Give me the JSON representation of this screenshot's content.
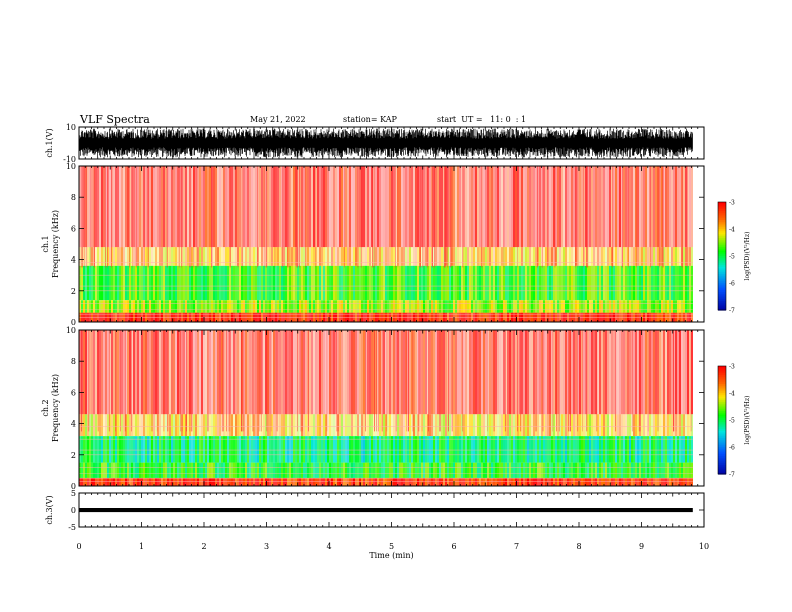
{
  "header": {
    "title": "VLF Spectra",
    "date": "May 21, 2022",
    "station": "station= KAP",
    "start": "start  UT =   11: 0  : 1"
  },
  "chart_data": [
    {
      "type": "line",
      "name": "ch1-waveform",
      "ylabel": "ch.1(V)",
      "ylim": [
        -10,
        10
      ],
      "yticks": [
        "10",
        "-10"
      ],
      "xlim": [
        0,
        10
      ],
      "data_extent_min": 9.82,
      "description_values": {
        "amplitude_min": -9,
        "amplitude_max": 9
      }
    },
    {
      "type": "heatmap",
      "name": "ch1-spectrogram",
      "ylabel": "ch.1\nFrequency (kHz)",
      "ylim": [
        0,
        10
      ],
      "yticks": [
        "0",
        "2",
        "4",
        "6",
        "8",
        "10"
      ],
      "xlim": [
        0,
        10
      ],
      "data_extent_min": 9.82,
      "colorbar": {
        "label": "log(PSD)(V²/Hz)",
        "range": [
          -7,
          -3
        ],
        "ticks": [
          "-3",
          "-4",
          "-5",
          "-6",
          "-7"
        ]
      },
      "bands": [
        {
          "from_khz": 0,
          "to_khz": 0.6,
          "level": -3.2
        },
        {
          "from_khz": 0.6,
          "to_khz": 1.4,
          "level": -4.4
        },
        {
          "from_khz": 1.4,
          "to_khz": 3.6,
          "level": -4.7
        },
        {
          "from_khz": 3.6,
          "to_khz": 4.8,
          "level": -3.9
        },
        {
          "from_khz": 4.8,
          "to_khz": 10,
          "level": -3.1
        }
      ]
    },
    {
      "type": "heatmap",
      "name": "ch2-spectrogram",
      "ylabel": "ch.2\nFrequency (kHz)",
      "ylim": [
        0,
        10
      ],
      "yticks": [
        "0",
        "2",
        "4",
        "6",
        "8",
        "10"
      ],
      "xlim": [
        0,
        10
      ],
      "data_extent_min": 9.82,
      "colorbar": {
        "label": "log(PSD)(V²/Hz)",
        "range": [
          -7,
          -3
        ],
        "ticks": [
          "-3",
          "-4",
          "-5",
          "-6",
          "-7"
        ]
      },
      "bands": [
        {
          "from_khz": 0,
          "to_khz": 0.5,
          "level": -3.3
        },
        {
          "from_khz": 0.5,
          "to_khz": 1.5,
          "level": -4.8
        },
        {
          "from_khz": 1.5,
          "to_khz": 3.2,
          "level": -5.1
        },
        {
          "from_khz": 3.2,
          "to_khz": 4.6,
          "level": -4.0
        },
        {
          "from_khz": 4.6,
          "to_khz": 10,
          "level": -3.1
        }
      ]
    },
    {
      "type": "line",
      "name": "ch3-waveform",
      "ylabel": "ch.3(V)",
      "ylim": [
        -5,
        5
      ],
      "yticks": [
        "5",
        "0",
        "-5"
      ],
      "xlim": [
        0,
        10
      ],
      "data_extent_min": 9.82,
      "description_values": {
        "amplitude_min": -0.6,
        "amplitude_max": 0.6
      }
    }
  ],
  "x_axis": {
    "label": "Time  (min)",
    "ticks": [
      "0",
      "1",
      "2",
      "3",
      "4",
      "5",
      "6",
      "7",
      "8",
      "9",
      "10"
    ]
  },
  "colors": {
    "waveform": "#000000",
    "low": "#ff2a2a",
    "mid": "#ffd200",
    "high": "#00ff00",
    "background_noise": "#ff0000"
  }
}
